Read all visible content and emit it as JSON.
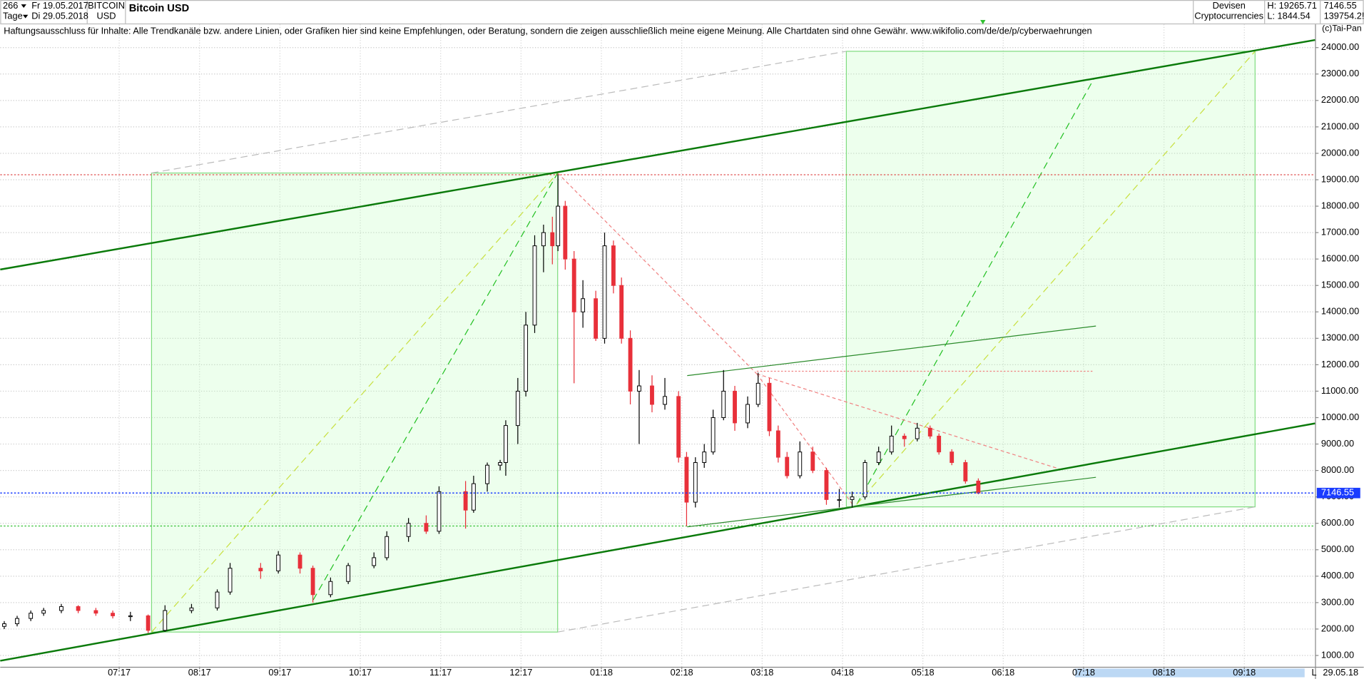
{
  "header": {
    "count": "266",
    "start_date": "Fr 19.05.2017",
    "period": "Tage",
    "end_date": "Di 29.05.2018",
    "symbol": "BITCOIN",
    "currency": "USD",
    "title": "Bitcoin USD",
    "category": "Devisen",
    "subcategory": "Cryptocurrencies",
    "high": "H: 19265.71",
    "low": "L: 1844.54",
    "last": "7146.55",
    "volume": "139754.2!"
  },
  "disclaimer": "Haftungsausschluss für Inhalte: Alle Trendkanäle bzw. andere Linien, oder Grafiken hier sind keine Empfehlungen, oder Beratung, sondern die zeigen ausschließlich meine eigene Meinung. Alle Chartdaten sind ohne Gewähr.  www.wikifolio.com/de/de/p/cyberwaehrungen",
  "copyright": "(c)Tai-Pan",
  "footer": {
    "marker": "L",
    "date": "29.05.18"
  },
  "chart_data": {
    "type": "candlestick",
    "title": "Bitcoin USD",
    "x": [
      -1.43,
      -1.27,
      -1.1,
      -0.94,
      -0.72,
      -0.51,
      -0.29,
      -0.08,
      0.14,
      0.36,
      0.57,
      0.9,
      1.22,
      1.38,
      1.76,
      1.98,
      2.25,
      2.41,
      2.63,
      2.85,
      3.17,
      3.33,
      3.6,
      3.82,
      3.98,
      4.31,
      4.41,
      4.58,
      4.74,
      4.81,
      4.96,
      5.06,
      5.17,
      5.28,
      5.39,
      5.46,
      5.55,
      5.66,
      5.77,
      5.93,
      6.04,
      6.15,
      6.25,
      6.36,
      6.47,
      6.63,
      6.79,
      6.96,
      7.06,
      7.17,
      7.28,
      7.39,
      7.52,
      7.66,
      7.82,
      7.95,
      8.09,
      8.2,
      8.31,
      8.47,
      8.63,
      8.8,
      8.96,
      9.12,
      9.28,
      9.45,
      9.61,
      9.77,
      9.93,
      10.09,
      10.2,
      10.36,
      10.53,
      10.69
    ],
    "open": [
      2100,
      2200,
      2400,
      2600,
      2700,
      2850,
      2700,
      2600,
      2500,
      2500,
      1950,
      2700,
      2800,
      3400,
      4300,
      4200,
      4800,
      4300,
      3300,
      3800,
      4400,
      4700,
      5500,
      6000,
      5700,
      7200,
      6500,
      7500,
      8200,
      8300,
      9700,
      11000,
      13500,
      16500,
      17000,
      16500,
      18000,
      16000,
      14000,
      14500,
      13000,
      16500,
      15000,
      13000,
      11000,
      11200,
      10500,
      10800,
      8500,
      6800,
      8300,
      8700,
      10000,
      11000,
      9800,
      10500,
      11300,
      9500,
      8500,
      7800,
      8700,
      8000,
      6900,
      6900,
      7000,
      8300,
      8700,
      9300,
      9200,
      9600,
      9300,
      8700,
      8300,
      7600
    ],
    "high": [
      2300,
      2500,
      2700,
      2800,
      2950,
      2900,
      2800,
      2700,
      2650,
      2550,
      2900,
      2950,
      3500,
      4500,
      4500,
      4950,
      4900,
      4400,
      3950,
      4500,
      4900,
      5700,
      6200,
      6300,
      7400,
      7600,
      7800,
      8300,
      8400,
      9900,
      11500,
      14000,
      16900,
      17300,
      17600,
      19200,
      18200,
      16300,
      15200,
      14800,
      17000,
      16700,
      15300,
      13300,
      11800,
      11600,
      11500,
      11000,
      8700,
      8500,
      9000,
      10300,
      11800,
      11200,
      10800,
      11700,
      11500,
      9700,
      8700,
      9100,
      8900,
      8100,
      7300,
      7200,
      8400,
      8900,
      9700,
      9400,
      9800,
      9700,
      9400,
      8800,
      8400,
      7700
    ],
    "low": [
      2000,
      2100,
      2300,
      2500,
      2600,
      2600,
      2500,
      2400,
      2300,
      1850,
      1900,
      2600,
      2700,
      3300,
      3900,
      4100,
      4100,
      3000,
      3200,
      3700,
      4300,
      4600,
      5300,
      5600,
      5600,
      5800,
      6400,
      7200,
      8000,
      7800,
      9000,
      10800,
      13200,
      15500,
      15800,
      16300,
      15600,
      11300,
      13400,
      12900,
      12800,
      14700,
      12800,
      10500,
      9000,
      10200,
      10300,
      8300,
      5900,
      6600,
      8100,
      8600,
      9900,
      9500,
      9600,
      10400,
      9300,
      8300,
      7700,
      7700,
      7900,
      6700,
      6600,
      6600,
      6900,
      8200,
      8600,
      8900,
      9100,
      9200,
      8600,
      8200,
      7500,
      7100
    ],
    "close": [
      2200,
      2400,
      2600,
      2700,
      2850,
      2700,
      2600,
      2500,
      2500,
      1950,
      2700,
      2800,
      3400,
      4300,
      4200,
      4800,
      4300,
      3300,
      3800,
      4400,
      4700,
      5500,
      6000,
      5700,
      7200,
      6500,
      7500,
      8200,
      8300,
      9700,
      11000,
      13500,
      16500,
      17000,
      16500,
      18000,
      16000,
      14000,
      14500,
      13000,
      16500,
      15000,
      13000,
      11000,
      11200,
      10500,
      10800,
      8500,
      6800,
      8300,
      8700,
      10000,
      11000,
      9800,
      10500,
      11300,
      9500,
      8500,
      7800,
      8700,
      8000,
      6900,
      6900,
      7000,
      8300,
      8700,
      9300,
      9200,
      9600,
      9300,
      8700,
      8300,
      7600,
      7146.55
    ],
    "up_color": "#000000",
    "down_color": "#e8303a",
    "current_price": 7146.55,
    "price_line_color": "#1a3cff",
    "ylim": [
      570,
      24880
    ],
    "yticks": [
      {
        "value": 1000,
        "label": "1000.00"
      },
      {
        "value": 2000,
        "label": "2000.00"
      },
      {
        "value": 3000,
        "label": "3000.00"
      },
      {
        "value": 4000,
        "label": "4000.00"
      },
      {
        "value": 5000,
        "label": "5000.00"
      },
      {
        "value": 6000,
        "label": "6000.00"
      },
      {
        "value": 7000,
        "label": "7000.00"
      },
      {
        "value": 8000,
        "label": "8000.00"
      },
      {
        "value": 9000,
        "label": "9000.00"
      },
      {
        "value": 10000,
        "label": "10000.00"
      },
      {
        "value": 11000,
        "label": "11000.00"
      },
      {
        "value": 12000,
        "label": "12000.00"
      },
      {
        "value": 13000,
        "label": "13000.00"
      },
      {
        "value": 14000,
        "label": "14000.00"
      },
      {
        "value": 15000,
        "label": "15000.00"
      },
      {
        "value": 16000,
        "label": "16000.00"
      },
      {
        "value": 17000,
        "label": "17000.00"
      },
      {
        "value": 18000,
        "label": "18000.00"
      },
      {
        "value": 19000,
        "label": "19000.00"
      },
      {
        "value": 20000,
        "label": "20000.00"
      },
      {
        "value": 21000,
        "label": "21000.00"
      },
      {
        "value": 22000,
        "label": "22000.00"
      },
      {
        "value": 23000,
        "label": "23000.00"
      },
      {
        "value": 24000,
        "label": "24000.00"
      }
    ],
    "xlim": [
      -1.48,
      14.88
    ],
    "xticks": [
      {
        "value": 0,
        "label": "07:17"
      },
      {
        "value": 1,
        "label": "08:17"
      },
      {
        "value": 2,
        "label": "09:17"
      },
      {
        "value": 3,
        "label": "10:17"
      },
      {
        "value": 4,
        "label": "11:17"
      },
      {
        "value": 5,
        "label": "12:17"
      },
      {
        "value": 6,
        "label": "01:18"
      },
      {
        "value": 7,
        "label": "02:18"
      },
      {
        "value": 8,
        "label": "03:18"
      },
      {
        "value": 9,
        "label": "04:18"
      },
      {
        "value": 10,
        "label": "05:18"
      },
      {
        "value": 11,
        "label": "06:18"
      },
      {
        "value": 12,
        "label": "07:18"
      },
      {
        "value": 13,
        "label": "08:18"
      },
      {
        "value": 14,
        "label": "09:18"
      }
    ],
    "grid": true
  }
}
